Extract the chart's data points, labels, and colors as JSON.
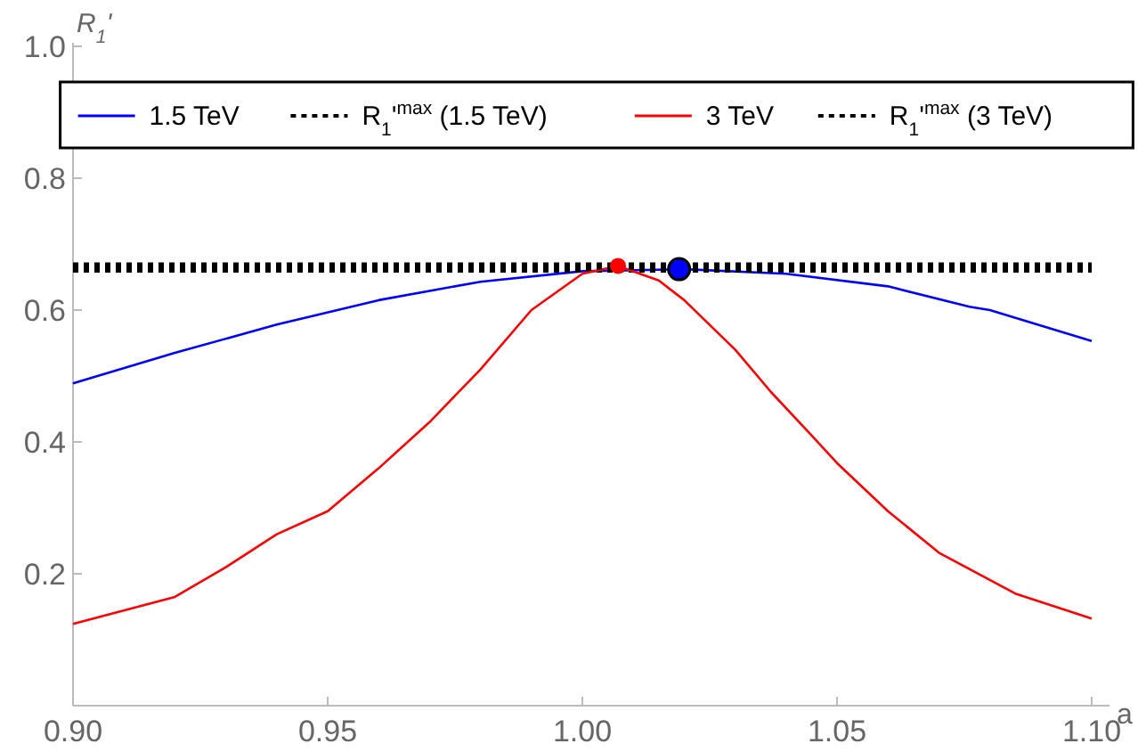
{
  "chart_data": {
    "type": "line",
    "xlabel": "a",
    "ylabel": "R$_{1}$'",
    "xlim": [
      0.9,
      1.1
    ],
    "xticks": [
      {
        "value": 0.9,
        "label": "0.90"
      },
      0.95,
      {
        "value": 1,
        "label": "1.00"
      },
      1.05,
      {
        "value": 1.1,
        "label": "1.10"
      }
    ],
    "ylim": [
      0,
      1
    ],
    "yticks": [
      0.2,
      0.4,
      0.6,
      0.8,
      {
        "value": 1,
        "label": "1.0"
      }
    ],
    "grid": false,
    "legend": "top",
    "series": [
      {
        "name": "1.5 TeV",
        "color": "#0000ff",
        "line_style": "solid",
        "x": [
          0.9,
          0.92,
          0.94,
          0.96,
          0.98,
          1.0,
          1.02,
          1.04,
          1.06,
          1.076,
          1.08,
          1.1
        ],
        "values": [
          0.489,
          0.535,
          0.578,
          0.615,
          0.643,
          0.659,
          0.662,
          0.655,
          0.636,
          0.605,
          0.6,
          0.553
        ]
      },
      {
        "name": "R$_{1}$'$^{max}$ (1.5 TeV)",
        "color": "#000000",
        "line_style": "dotted",
        "x": [
          0.9,
          1.1
        ],
        "values": [
          0.662,
          0.662
        ]
      },
      {
        "name": "3 TeV",
        "color": "#ff0000",
        "line_style": "solid",
        "x": [
          0.9,
          0.92,
          0.93,
          0.94,
          0.95,
          0.96,
          0.97,
          0.975,
          0.98,
          0.99,
          1.0,
          1.007,
          1.015,
          1.02,
          1.03,
          1.037,
          1.045,
          1.05,
          1.06,
          1.07,
          1.085,
          1.1
        ],
        "values": [
          0.124,
          0.165,
          0.21,
          0.26,
          0.295,
          0.36,
          0.43,
          0.47,
          0.51,
          0.6,
          0.655,
          0.667,
          0.645,
          0.615,
          0.54,
          0.476,
          0.41,
          0.368,
          0.295,
          0.232,
          0.17,
          0.132
        ]
      },
      {
        "name": "R$_{1}$'$^{max}$ (3 TeV)",
        "color": "#000000",
        "line_style": "dotted",
        "x": [
          0.9,
          1.1
        ],
        "values": [
          0.667,
          0.667
        ]
      },
      {
        "type": "scatter",
        "marker": "circle",
        "color": "#ff0000",
        "x": [
          1.007
        ],
        "values": [
          0.667
        ]
      },
      {
        "type": "scatter",
        "marker": "circle",
        "color": "#0000ff",
        "x": [
          1.019
        ],
        "values": [
          0.662
        ]
      }
    ]
  }
}
